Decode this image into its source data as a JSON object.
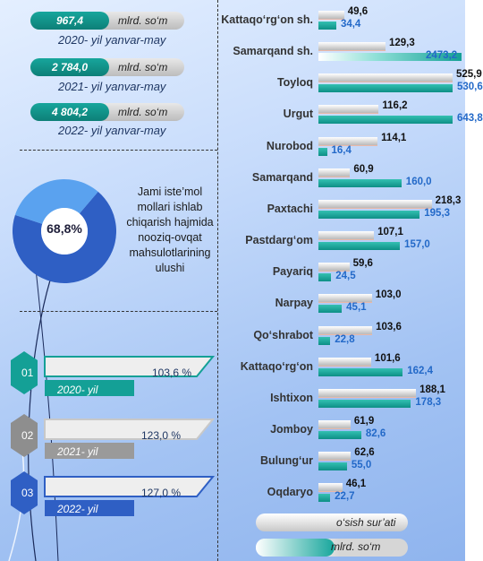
{
  "summary": [
    {
      "value": "967,4",
      "unit": "mlrd. so‘m",
      "caption": "2020- yil yanvar-may"
    },
    {
      "value": "2 784,0",
      "unit": "mlrd. so‘m",
      "caption": "2021- yil yanvar-may"
    },
    {
      "value": "4 804,2",
      "unit": "mlrd. so‘m",
      "caption": "2022- yil yanvar-may"
    }
  ],
  "donut": {
    "value_label": "68,8%",
    "value": 68.8,
    "text": "Jami iste’mol mollari ishlab chiqarish hajmida nooziq-ovqat mahsulotlarining ulushi",
    "colors": {
      "main": "#2f5fc4",
      "rest": "#5aa2ef"
    }
  },
  "growth": [
    {
      "index": "01",
      "value": "103,6 %",
      "year": "2020- yil",
      "color": "#14a096"
    },
    {
      "index": "02",
      "value": "123,0 %",
      "year": "2021- yil",
      "color": "#8e8e8e"
    },
    {
      "index": "03",
      "value": "127,0 %",
      "year": "2022- yil",
      "color": "#2f5fc4"
    }
  ],
  "legend": {
    "gray": "o‘sish sur’ati",
    "teal": "mlrd. so‘m"
  },
  "chart_data": {
    "type": "bar",
    "categories": [
      "Kattaqo‘rg‘on sh.",
      "Samarqand sh.",
      "Toyloq",
      "Urgut",
      "Nurobod",
      "Samarqand",
      "Paxtachi",
      "Pastdarg‘om",
      "Payariq",
      "Narpay",
      "Qo‘shrabot",
      "Kattaqo‘rg‘on",
      "Ishtixon",
      "Jomboy",
      "Bulung‘ur",
      "Oqdaryo"
    ],
    "series": [
      {
        "name": "o‘sish sur’ati",
        "values": [
          49.6,
          129.3,
          525.9,
          116.2,
          114.1,
          60.9,
          218.3,
          107.1,
          59.6,
          103.0,
          103.6,
          101.6,
          188.1,
          61.9,
          62.6,
          46.1
        ],
        "labels": [
          "49,6",
          "129,3",
          "525,9",
          "116,2",
          "114,1",
          "60,9",
          "218,3",
          "107,1",
          "59,6",
          "103,0",
          "103,6",
          "101,6",
          "188,1",
          "61,9",
          "62,6",
          "46,1"
        ],
        "color": "#bdbdbd"
      },
      {
        "name": "mlrd. so‘m",
        "values": [
          34.4,
          2473.2,
          530.6,
          643.8,
          16.4,
          160.0,
          195.3,
          157.0,
          24.5,
          45.1,
          22.8,
          162.4,
          178.3,
          82.6,
          55.0,
          22.7
        ],
        "labels": [
          "34,4",
          "2473,2",
          "530,6",
          "643,8",
          "16,4",
          "160,0",
          "195,3",
          "157,0",
          "24,5",
          "45,1",
          "22,8",
          "162,4",
          "178,3",
          "82,6",
          "55,0",
          "22,7"
        ],
        "color": "#14a096"
      }
    ]
  }
}
